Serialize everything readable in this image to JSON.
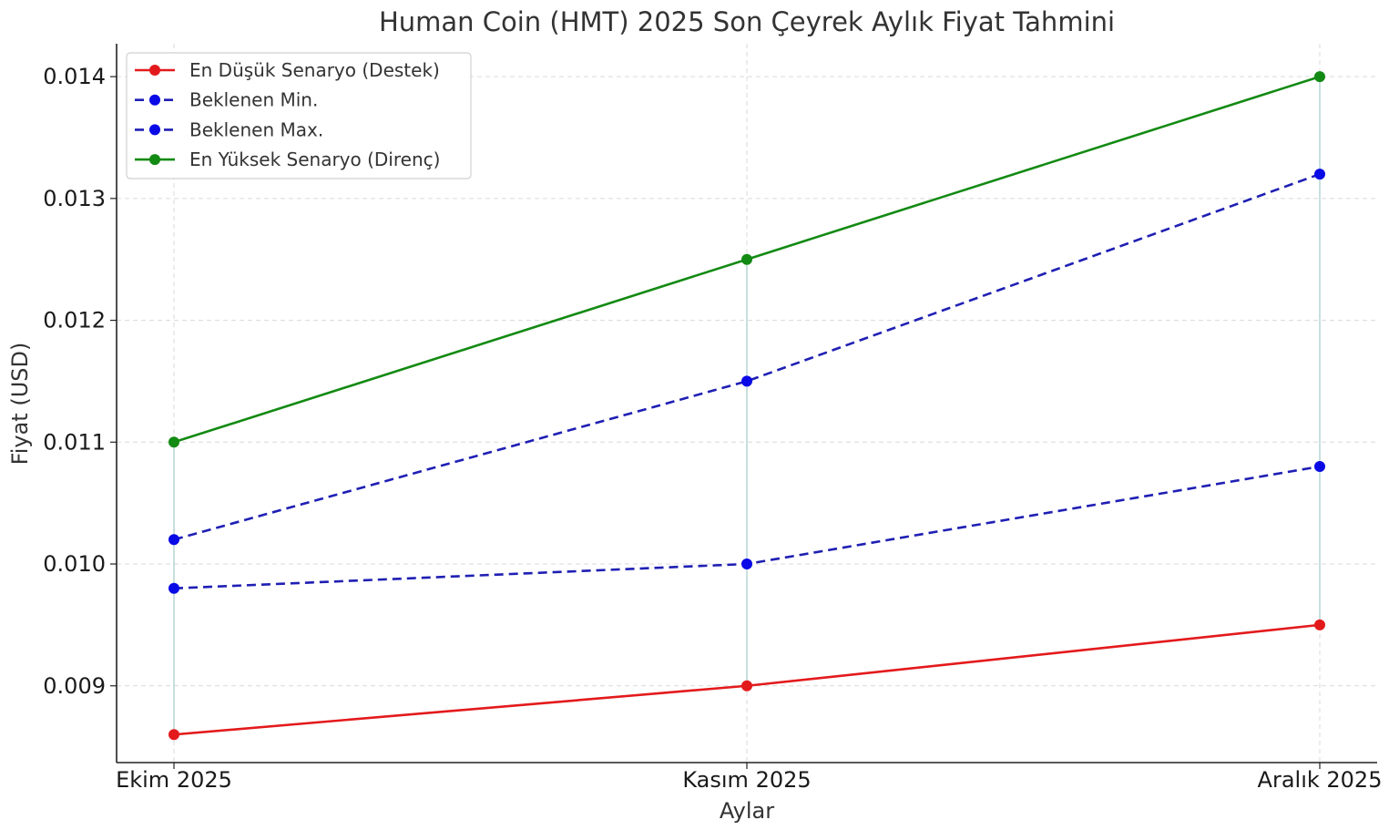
{
  "chart_data": {
    "type": "line",
    "title": "Human Coin (HMT) 2025 Son Çeyrek Aylık Fiyat Tahmini",
    "xlabel": "Aylar",
    "ylabel": "Fiyat (USD)",
    "categories": [
      "Ekim 2025",
      "Kasım 2025",
      "Aralık 2025"
    ],
    "ylim": [
      0.00837,
      0.01427
    ],
    "yticks": [
      0.009,
      0.01,
      0.011,
      0.012,
      0.013,
      0.014
    ],
    "ytick_labels": [
      "0.009",
      "0.010",
      "0.011",
      "0.012",
      "0.013",
      "0.014"
    ],
    "grid": true,
    "legend_position": "top-left",
    "series": [
      {
        "name": "En Düşük Senaryo (Destek)",
        "values": [
          0.0086,
          0.009,
          0.0095
        ],
        "color": "#e31a1c",
        "dash": "solid"
      },
      {
        "name": "Beklenen Min.",
        "values": [
          0.0098,
          0.01,
          0.0108
        ],
        "color": "#1f1fb4",
        "dash": "dashed",
        "marker_color": "#0a0ae6"
      },
      {
        "name": "Beklenen Max.",
        "values": [
          0.0102,
          0.0115,
          0.0132
        ],
        "color": "#1f1fb4",
        "dash": "dashed",
        "marker_color": "#0a0ae6"
      },
      {
        "name": "En Yüksek Senaryo (Direnç)",
        "values": [
          0.011,
          0.0125,
          0.014
        ],
        "color": "#138a13",
        "dash": "solid"
      }
    ]
  }
}
